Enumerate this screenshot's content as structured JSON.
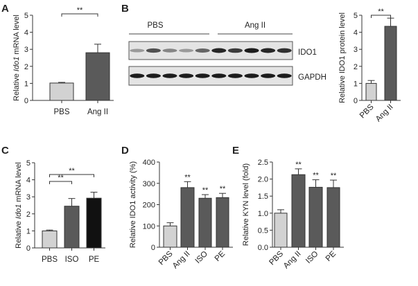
{
  "panels": {
    "a": "A",
    "b": "B",
    "c": "C",
    "d": "D",
    "e": "E"
  },
  "blot": {
    "groups": [
      "PBS",
      "Ang II"
    ],
    "bands": [
      "IDO1",
      "GAPDH"
    ]
  },
  "colors": {
    "light": "#d2d2d2",
    "dark": "#5a5a5a",
    "black": "#111111"
  },
  "chart_data": [
    {
      "type": "bar",
      "panel": "A",
      "ylabel_pre": "Relative ",
      "ylabel_italic": "Ido1",
      "ylabel_post": " mRNA level",
      "ylim": [
        0,
        5
      ],
      "yticks": [
        "0",
        "1",
        "2",
        "3",
        "4",
        "5"
      ],
      "categories": [
        "PBS",
        "Ang II"
      ],
      "values": [
        1.02,
        2.8
      ],
      "errors": [
        0.04,
        0.5
      ],
      "fills": [
        "light",
        "dark"
      ],
      "annotations": [
        {
          "type": "bracket",
          "from": 0,
          "to": 1,
          "label": "**"
        }
      ]
    },
    {
      "type": "bar",
      "panel": "B",
      "ylabel": "Relative IDO1 protein level",
      "ylim": [
        0,
        5
      ],
      "yticks": [
        "0",
        "1",
        "2",
        "3",
        "4",
        "5"
      ],
      "categories": [
        "PBS",
        "Ang II"
      ],
      "values": [
        1.0,
        4.35
      ],
      "errors": [
        0.17,
        0.48
      ],
      "fills": [
        "light",
        "dark"
      ],
      "annotations": [
        {
          "type": "bracket",
          "from": 0,
          "to": 1,
          "label": "**"
        }
      ]
    },
    {
      "type": "bar",
      "panel": "C",
      "ylabel_pre": "Relative ",
      "ylabel_italic": "Ido1",
      "ylabel_post": " mRNA level",
      "ylim": [
        0,
        5
      ],
      "yticks": [
        "0",
        "1",
        "2",
        "3",
        "4",
        "5"
      ],
      "categories": [
        "PBS",
        "ISO",
        "PE"
      ],
      "values": [
        1.0,
        2.45,
        2.92
      ],
      "errors": [
        0.05,
        0.45,
        0.35
      ],
      "fills": [
        "light",
        "dark",
        "black"
      ],
      "annotations": [
        {
          "type": "bracket",
          "from": 0,
          "to": 1,
          "label": "**"
        },
        {
          "type": "bracket",
          "from": 0,
          "to": 2,
          "label": "**"
        }
      ]
    },
    {
      "type": "bar",
      "panel": "D",
      "ylabel": "Relative IDO1 activity (%)",
      "ylim": [
        0,
        400
      ],
      "yticks": [
        "0",
        "100",
        "200",
        "300",
        "400"
      ],
      "categories": [
        "PBS",
        "Ang II",
        "ISO",
        "PE"
      ],
      "values": [
        100,
        280,
        230,
        233
      ],
      "errors": [
        15,
        28,
        17,
        20
      ],
      "fills": [
        "light",
        "dark",
        "dark",
        "dark"
      ],
      "star_labels": [
        "",
        "**",
        "**",
        "**"
      ]
    },
    {
      "type": "bar",
      "panel": "E",
      "ylabel": "Relative KYN level (fold)",
      "ylim": [
        0,
        2.5
      ],
      "yticks": [
        "0.0",
        "0.5",
        "1.0",
        "1.5",
        "2.0",
        "2.5"
      ],
      "categories": [
        "PBS",
        "Ang II",
        "ISO",
        "PE"
      ],
      "values": [
        1.0,
        2.13,
        1.76,
        1.75
      ],
      "errors": [
        0.1,
        0.17,
        0.22,
        0.22
      ],
      "fills": [
        "light",
        "dark",
        "dark",
        "dark"
      ],
      "star_labels": [
        "",
        "**",
        "**",
        "**"
      ]
    }
  ]
}
